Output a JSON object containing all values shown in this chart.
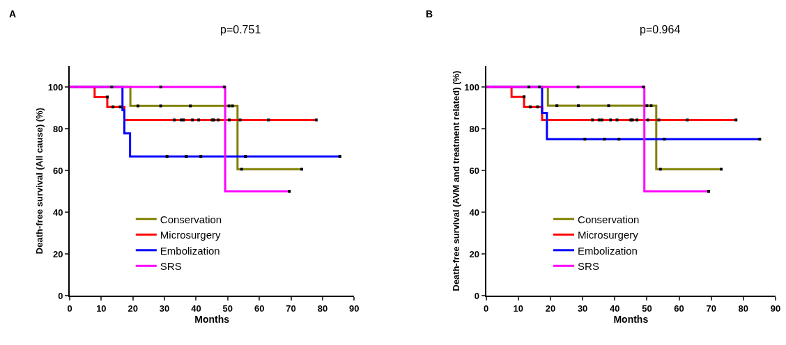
{
  "chart_data": [
    {
      "type": "step",
      "ylabel": "Death-free survival (All cause) (%)",
      "xlabel": "Months",
      "annotations": [
        "A",
        "p=0.751"
      ],
      "xlim": [
        0,
        90
      ],
      "xticks": [
        0,
        10,
        20,
        30,
        40,
        50,
        60,
        70,
        80,
        90
      ],
      "ylim": [
        0,
        110
      ],
      "yticks": [
        0,
        20,
        40,
        60,
        80,
        100
      ],
      "legend": "bottom",
      "marker": "none",
      "series": [
        {
          "name": "Conservation",
          "color": "#808000",
          "x": [
            0,
            19.2,
            53.1,
            73.4
          ],
          "values": [
            100,
            90.9,
            60.6,
            60.6
          ]
        },
        {
          "name": "Microsurgery",
          "color": "#ff0000",
          "x": [
            0,
            7.9,
            11.9,
            17.3,
            78
          ],
          "values": [
            100,
            95.2,
            90.5,
            84.2,
            84.2
          ]
        },
        {
          "name": "Embolization",
          "color": "#0000ff",
          "x": [
            0,
            16.7,
            17.3,
            19.1,
            85.5
          ],
          "values": [
            100,
            88.9,
            77.8,
            66.7,
            66.7
          ]
        },
        {
          "name": "SRS",
          "color": "#ff00ff",
          "x": [
            0,
            49.2,
            69.5
          ],
          "values": [
            100,
            50,
            50
          ]
        },
        {
          "type": "scatter",
          "marker": "square",
          "color": "#000000",
          "x": [
            13.3,
            21.6,
            28.8,
            38.2,
            50.4,
            51.5,
            54.4,
            73.4
          ],
          "values": [
            100,
            90.9,
            90.9,
            90.9,
            90.9,
            90.9,
            60.6,
            60.6
          ]
        },
        {
          "type": "scatter",
          "marker": "square",
          "color": "#000000",
          "x": [
            11.9,
            13.7,
            16,
            33.1,
            35.3,
            36.1,
            38.8,
            40.8,
            45.1,
            45.6,
            47,
            50.5,
            53.9,
            62.9,
            78
          ],
          "values": [
            95.2,
            90.5,
            90.5,
            84.2,
            84.2,
            84.2,
            84.2,
            84.2,
            84.2,
            84.2,
            84.2,
            84.2,
            84.2,
            84.2,
            84.2
          ]
        },
        {
          "type": "scatter",
          "marker": "square",
          "color": "#000000",
          "x": [
            30.8,
            36.9,
            41.5,
            55.6,
            85.5
          ],
          "values": [
            66.7,
            66.7,
            66.7,
            66.7,
            66.7
          ]
        },
        {
          "type": "scatter",
          "marker": "square",
          "color": "#000000",
          "x": [
            28.8,
            48.9,
            69.5
          ],
          "values": [
            100,
            100,
            50
          ]
        }
      ]
    },
    {
      "type": "step",
      "ylabel": "Death-free survival (AVM and treatment related) (%)",
      "xlabel": "Months",
      "annotations": [
        "B",
        "p=0.964"
      ],
      "xlim": [
        0,
        90
      ],
      "xticks": [
        0,
        10,
        20,
        30,
        40,
        50,
        60,
        70,
        80,
        90
      ],
      "ylim": [
        0,
        110
      ],
      "yticks": [
        0,
        20,
        40,
        60,
        80,
        100
      ],
      "legend": "bottom",
      "marker": "none",
      "series": [
        {
          "name": "Conservation",
          "color": "#808000",
          "x": [
            0,
            19.2,
            52.9,
            73.1
          ],
          "values": [
            100,
            91,
            60.6,
            60.6
          ]
        },
        {
          "name": "Microsurgery",
          "color": "#ff0000",
          "x": [
            0,
            7.9,
            11.8,
            17.4,
            77.7
          ],
          "values": [
            100,
            95.3,
            90.5,
            84.2,
            84.2
          ]
        },
        {
          "name": "Embolization",
          "color": "#0000ff",
          "x": [
            0,
            17.4,
            18.9,
            85.1
          ],
          "values": [
            100,
            87.5,
            75,
            75
          ]
        },
        {
          "name": "SRS",
          "color": "#ff00ff",
          "x": [
            0,
            49.2,
            69.2
          ],
          "values": [
            100,
            50,
            50
          ]
        },
        {
          "type": "scatter",
          "marker": "square",
          "color": "#000000",
          "x": [
            13.3,
            16.6,
            22,
            28.7,
            38.1,
            50,
            51.3,
            54.2,
            73.1
          ],
          "values": [
            100,
            100,
            91,
            91,
            91,
            91,
            91,
            60.6,
            60.6
          ]
        },
        {
          "type": "scatter",
          "marker": "square",
          "color": "#000000",
          "x": [
            11.8,
            13.7,
            16,
            33,
            35.1,
            36,
            38.7,
            40.7,
            45,
            45.5,
            46.9,
            50.3,
            53.7,
            62.6,
            77.7
          ],
          "values": [
            95.3,
            90.5,
            90.5,
            84.2,
            84.2,
            84.2,
            84.2,
            84.2,
            84.2,
            84.2,
            84.2,
            84.2,
            84.2,
            84.2,
            84.2
          ]
        },
        {
          "type": "scatter",
          "marker": "square",
          "color": "#000000",
          "x": [
            30.7,
            36.8,
            41.3,
            55.4,
            85.1
          ],
          "values": [
            75,
            75,
            75,
            75,
            75
          ]
        },
        {
          "type": "scatter",
          "marker": "square",
          "color": "#000000",
          "x": [
            28.6,
            48.9,
            69.2
          ],
          "values": [
            100,
            100,
            50
          ]
        }
      ]
    }
  ]
}
